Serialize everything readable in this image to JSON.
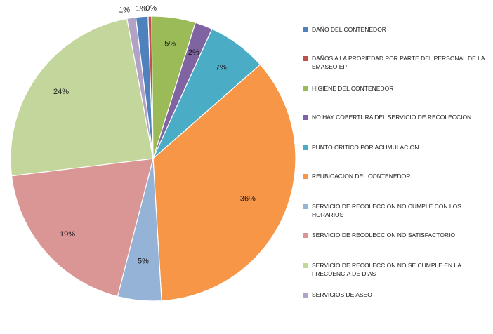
{
  "chart_data": {
    "type": "pie",
    "title": "",
    "start_angle_deg": -7,
    "slices": [
      {
        "label": "DAÑO DEL CONTENEDOR",
        "value": 1.4,
        "display": "1%",
        "color": "#4F81BD"
      },
      {
        "label": "DAÑOS A LA PROPIEDAD POR PARTE DEL PERSONAL DE LA EMASEO EP",
        "value": 0.4,
        "display": "0%",
        "color": "#C0504D"
      },
      {
        "label": "HIGIENE DEL CONTENEDOR",
        "value": 5.0,
        "display": "5%",
        "color": "#9BBB59"
      },
      {
        "label": "NO HAY COBERTURA DEL SERVICIO DE RECOLECCION",
        "value": 2.0,
        "display": "2%",
        "color": "#8064A2"
      },
      {
        "label": "PUNTO CRITICO POR ACUMULACION",
        "value": 6.8,
        "display": "7%",
        "color": "#4BACC6"
      },
      {
        "label": "REUBICACION DEL CONTENEDOR",
        "value": 35.8,
        "display": "36%",
        "color": "#F79646"
      },
      {
        "label": "SERVICIO DE RECOLECCION NO CUMPLE CON LOS HORARIOS",
        "value": 5.0,
        "display": "5%",
        "color": "#95B3D7"
      },
      {
        "label": "SERVICIO DE RECOLECCION NO SATISFACTORIO",
        "value": 19.2,
        "display": "19%",
        "color": "#D99694"
      },
      {
        "label": "SERVICIO DE RECOLECCION NO SE CUMPLE EN LA FRECUENCIA DE DIAS",
        "value": 24.2,
        "display": "24%",
        "color": "#C3D69B"
      },
      {
        "label": "SERVICIOS DE ASEO",
        "value": 1.0,
        "display": "1%",
        "color": "#B3A2C7"
      }
    ],
    "legend_position": "right"
  }
}
